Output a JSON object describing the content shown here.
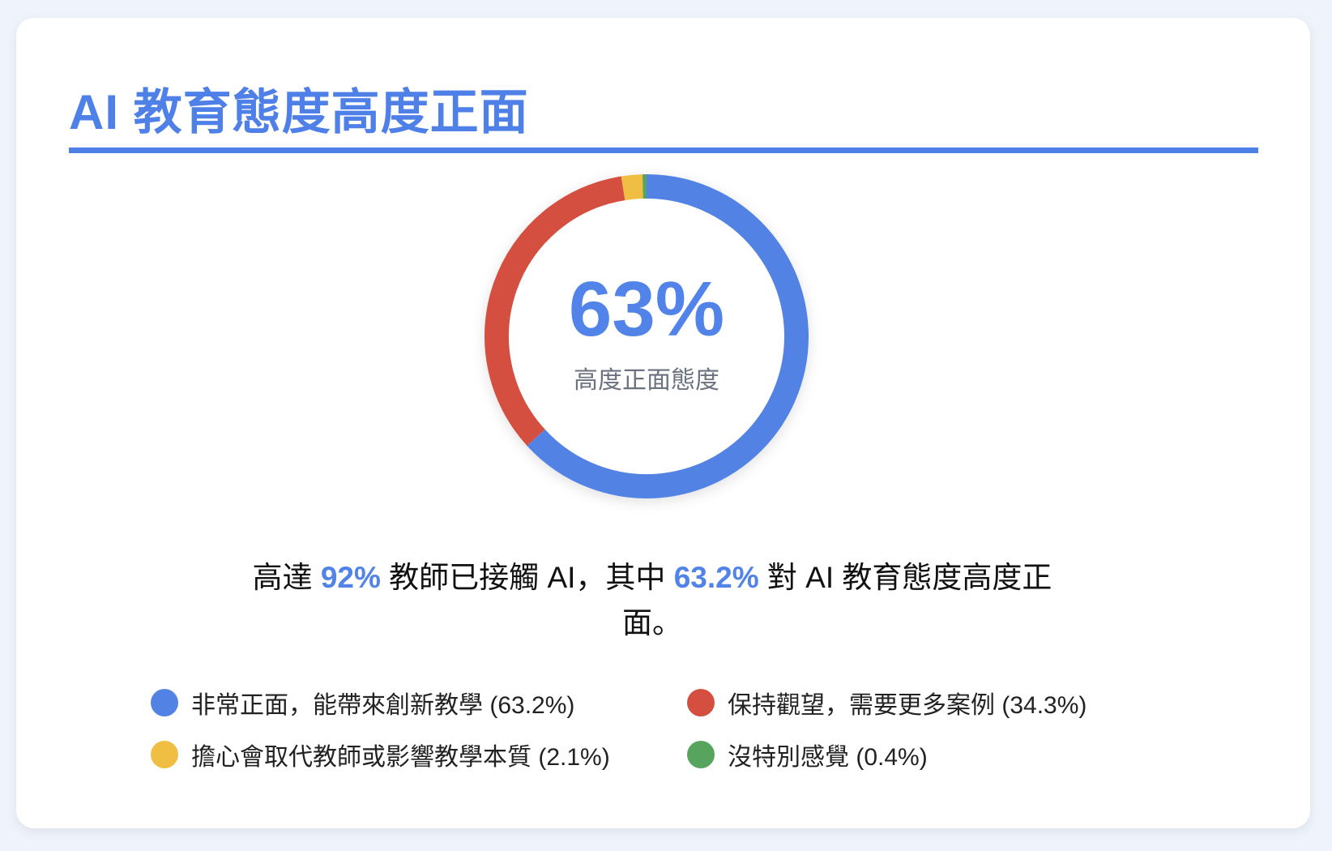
{
  "title": "AI 教育態度高度正面",
  "chart_data": {
    "type": "pie",
    "variant": "donut",
    "categories": [
      "非常正面，能帶來創新教學",
      "保持觀望，需要更多案例",
      "擔心會取代教師或影響教學本質",
      "沒特別感覺"
    ],
    "values": [
      63.2,
      34.3,
      2.1,
      0.4
    ],
    "colors": [
      "#5283e4",
      "#d44f3f",
      "#f0be42",
      "#56a45e"
    ],
    "center_value": "63%",
    "center_label": "高度正面態度",
    "legend_placement": "bottom",
    "legend": [
      {
        "label": "非常正面，能帶來創新教學 (63.2%)"
      },
      {
        "label": "保持觀望，需要更多案例 (34.3%)"
      },
      {
        "label": "擔心會取代教師或影響教學本質 (2.1%)"
      },
      {
        "label": "沒特別感覺 (0.4%)"
      }
    ]
  },
  "summary": {
    "p1": "高達 ",
    "h1": "92%",
    "p2": " 教師已接觸 AI，其中 ",
    "h2": "63.2%",
    "p3": " 對 AI 教育態度高度正面。"
  }
}
